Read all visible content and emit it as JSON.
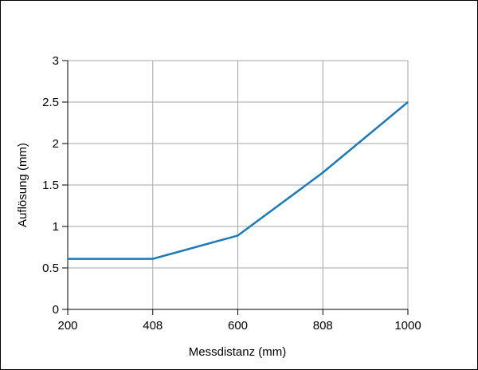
{
  "chart_data": {
    "type": "line",
    "title": "",
    "xlabel": "Messdistanz (mm)",
    "ylabel": "Auflösung (mm)",
    "x_ticks": [
      "200",
      "408",
      "600",
      "808",
      "1000"
    ],
    "y_ticks": [
      "0",
      "0.5",
      "1",
      "1.5",
      "2",
      "2.5",
      "3"
    ],
    "xlim": [
      200,
      1000
    ],
    "ylim": [
      0,
      3
    ],
    "grid": true,
    "series": [
      {
        "x": [
          200,
          408,
          600,
          808,
          1000
        ],
        "y": [
          0.61,
          0.61,
          0.89,
          1.65,
          2.5
        ],
        "color": "#1a7ab8"
      }
    ]
  }
}
